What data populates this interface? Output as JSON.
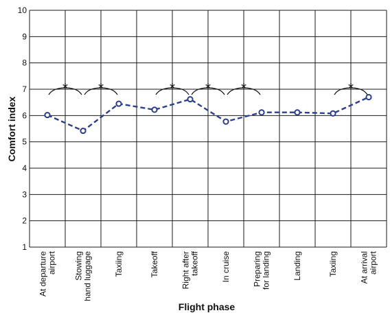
{
  "chart_data": {
    "type": "line",
    "xlabel": "Flight phase",
    "ylabel": "Comfort index",
    "ylim": [
      1,
      10
    ],
    "yticks": [
      "1",
      "2",
      "3",
      "4",
      "5",
      "6",
      "7",
      "8",
      "9",
      "10"
    ],
    "grid": true,
    "categories": [
      [
        "At departure",
        "airport"
      ],
      [
        "Stowing",
        "hand luggage"
      ],
      [
        "Taxiing"
      ],
      [
        "Takeoff"
      ],
      [
        "Right after",
        "takeoff"
      ],
      [
        "In cruise"
      ],
      [
        "Preparing",
        "for landing"
      ],
      [
        "Landing"
      ],
      [
        "Taxiing"
      ],
      [
        "At arrival",
        "airport"
      ]
    ],
    "values": [
      6.02,
      5.42,
      6.45,
      6.22,
      6.62,
      5.77,
      6.12,
      6.12,
      6.08,
      6.7
    ],
    "series_color": "#2b3f8f",
    "significance": {
      "symbol": "*",
      "pairs": [
        [
          0,
          1
        ],
        [
          1,
          2
        ],
        [
          3,
          4
        ],
        [
          4,
          5
        ],
        [
          5,
          6
        ],
        [
          8,
          9
        ]
      ]
    }
  }
}
